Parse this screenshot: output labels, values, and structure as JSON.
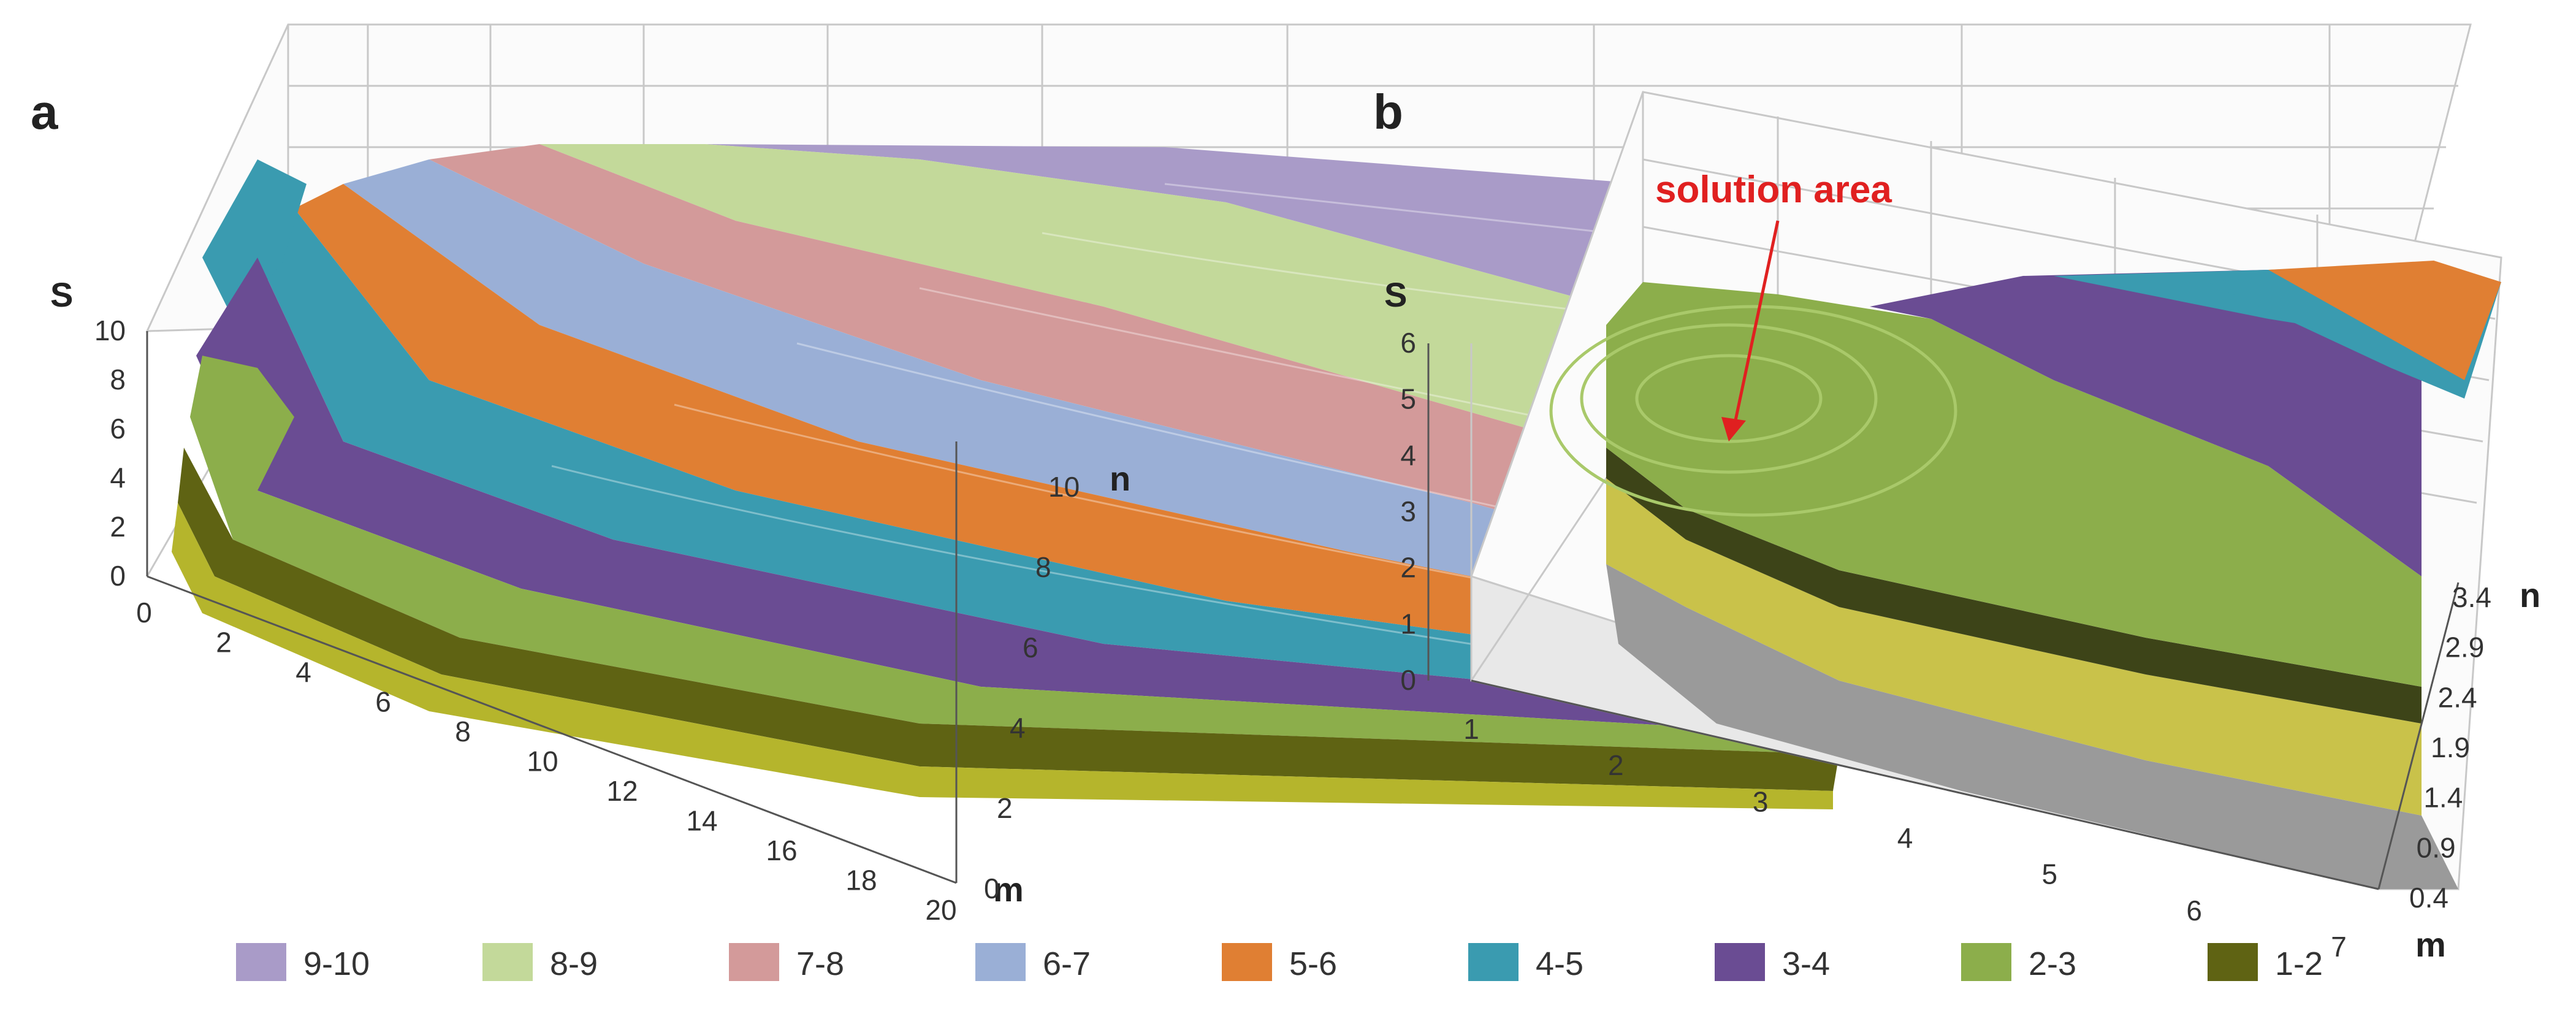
{
  "chart_data": [
    {
      "type": "surface3d",
      "panel": "a",
      "zlabel": "S",
      "xlabel": "m",
      "ylabel": "n",
      "zticks": [
        "0",
        "2",
        "4",
        "6",
        "8",
        "10"
      ],
      "xticks": [
        "0",
        "2",
        "4",
        "6",
        "8",
        "10",
        "12",
        "14",
        "16",
        "18",
        "20"
      ],
      "yticks": [
        "0",
        "2",
        "4",
        "6",
        "8",
        "10"
      ],
      "zlim": [
        0,
        10
      ],
      "xlim": [
        0,
        20
      ],
      "ylim": [
        0,
        11
      ]
    },
    {
      "type": "surface3d",
      "panel": "b",
      "zlabel": "S",
      "xlabel": "m",
      "ylabel": "n",
      "zticks": [
        "0",
        "1",
        "2",
        "3",
        "4",
        "5",
        "6"
      ],
      "xticks": [
        "1",
        "2",
        "3",
        "4",
        "5",
        "6",
        "7"
      ],
      "yticks": [
        "0.4",
        "0.9",
        "1.4",
        "1.9",
        "2.4",
        "2.9",
        "3.4"
      ],
      "zlim": [
        0,
        6
      ],
      "xlim": [
        1,
        7
      ],
      "ylim": [
        0.4,
        3.4
      ],
      "annotation": "solution area"
    }
  ],
  "legend": [
    {
      "label": "9-10",
      "color": "#a99bc8"
    },
    {
      "label": "8-9",
      "color": "#c3d99a"
    },
    {
      "label": "7-8",
      "color": "#d39a9a"
    },
    {
      "label": "6-7",
      "color": "#9aafd6"
    },
    {
      "label": "5-6",
      "color": "#e07f33"
    },
    {
      "label": "4-5",
      "color": "#3a9bb0"
    },
    {
      "label": "3-4",
      "color": "#6a4c93"
    },
    {
      "label": "2-3",
      "color": "#8cae4b"
    },
    {
      "label": "1-2",
      "color": "#5f6313"
    }
  ]
}
